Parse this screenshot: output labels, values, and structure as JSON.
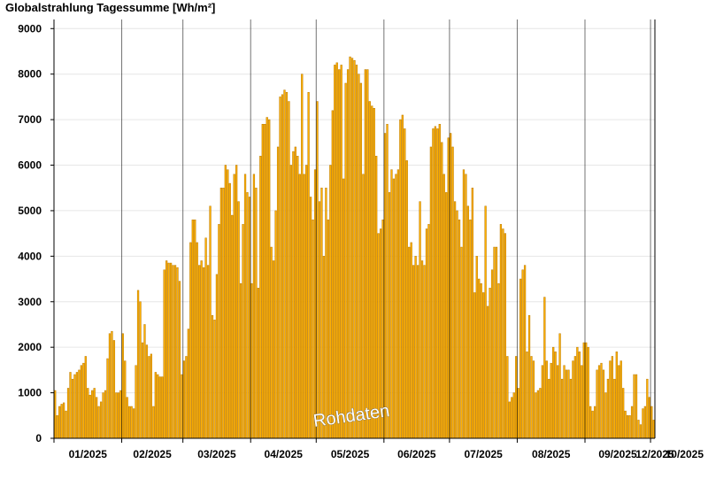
{
  "chart_data": {
    "type": "bar",
    "title": "Globalstrahlung Tagessumme [Wh/m²]",
    "watermark": "Rohdaten",
    "ylim": [
      0,
      9200
    ],
    "yticks": [
      0,
      1000,
      2000,
      3000,
      4000,
      5000,
      6000,
      7000,
      8000,
      9000
    ],
    "xlabels": [
      "01/2025",
      "02/2025",
      "03/2025",
      "04/2025",
      "05/2025",
      "06/2025",
      "07/2025",
      "08/2025",
      "09/2025",
      "10/2025",
      "11/2025",
      "12/2025"
    ],
    "month_lengths": [
      31,
      28,
      31,
      30,
      31,
      30,
      31,
      31,
      30,
      31,
      30
    ],
    "grid": true,
    "legend": "none",
    "colors": {
      "bar_fill": "#FFB000",
      "bar_stroke": "#B87800",
      "grid": "#e6e6e6",
      "axis": "#000000"
    },
    "series": [
      {
        "values": [
          1050,
          500,
          700,
          750,
          780,
          600,
          1100,
          1450,
          1300,
          1400,
          1450,
          1500,
          1600,
          1650,
          1800,
          1100,
          950,
          1050,
          1100,
          900,
          700,
          800,
          1000,
          1050,
          1750,
          2300,
          2350,
          2150,
          1000,
          1000,
          1050,
          2300,
          1700,
          900,
          700,
          700,
          650,
          1600,
          3250,
          3000,
          2100,
          2500,
          2050,
          1800,
          1850,
          700,
          1450,
          1400,
          1350,
          1350,
          3700,
          3900,
          3850,
          3850,
          3800,
          3800,
          3750,
          3450,
          1400,
          1700,
          1800,
          2400,
          4300,
          4800,
          4800,
          4300,
          3800,
          3900,
          3750,
          4400,
          3800,
          5100,
          2700,
          2600,
          3600,
          4700,
          5500,
          5500,
          6000,
          5900,
          5600,
          4900,
          5800,
          6000,
          5200,
          3400,
          4700,
          5800,
          5400,
          5300,
          3400,
          5800,
          5500,
          3300,
          6200,
          6900,
          6900,
          7050,
          7000,
          4200,
          3900,
          5000,
          6400,
          7500,
          7550,
          7650,
          7600,
          7400,
          6000,
          6300,
          6400,
          6200,
          5800,
          8000,
          5800,
          6000,
          7600,
          5300,
          4800,
          5900,
          7400,
          5200,
          5500,
          4000,
          5500,
          4800,
          6000,
          7200,
          8200,
          8250,
          8100,
          8200,
          5700,
          7800,
          8100,
          8380,
          8350,
          8300,
          8200,
          8000,
          7800,
          5800,
          8100,
          8100,
          7400,
          7300,
          7250,
          6200,
          4500,
          4600,
          4800,
          6700,
          6900,
          5400,
          5900,
          5700,
          5800,
          5900,
          7000,
          7100,
          6800,
          6100,
          4200,
          4300,
          3800,
          4000,
          3800,
          5200,
          3900,
          3800,
          4600,
          4700,
          6400,
          6800,
          6850,
          6800,
          6900,
          6500,
          5800,
          5400,
          6600,
          6700,
          6400,
          5200,
          5000,
          4800,
          4200,
          5900,
          5800,
          5100,
          4800,
          5500,
          3200,
          4000,
          3500,
          3400,
          3200,
          5100,
          2900,
          3300,
          3700,
          4200,
          4200,
          3400,
          4700,
          4600,
          4500,
          1800,
          800,
          900,
          1000,
          1800,
          1100,
          3500,
          3700,
          3800,
          1900,
          2700,
          1800,
          1700,
          1000,
          1050,
          1100,
          1600,
          3100,
          1700,
          1300,
          1650,
          2000,
          1900,
          1600,
          2300,
          1300,
          1600,
          1500,
          1500,
          1300,
          1700,
          1800,
          2000,
          1900,
          1600,
          2100,
          2100,
          2000,
          700,
          600,
          700,
          1500,
          1600,
          1650,
          1500,
          1000,
          1300,
          1700,
          1800,
          1300,
          1900,
          1600,
          1700,
          1100,
          600,
          500,
          500,
          700,
          1400,
          1400,
          400,
          300,
          650,
          700,
          1300,
          900,
          700,
          400
        ]
      }
    ]
  }
}
